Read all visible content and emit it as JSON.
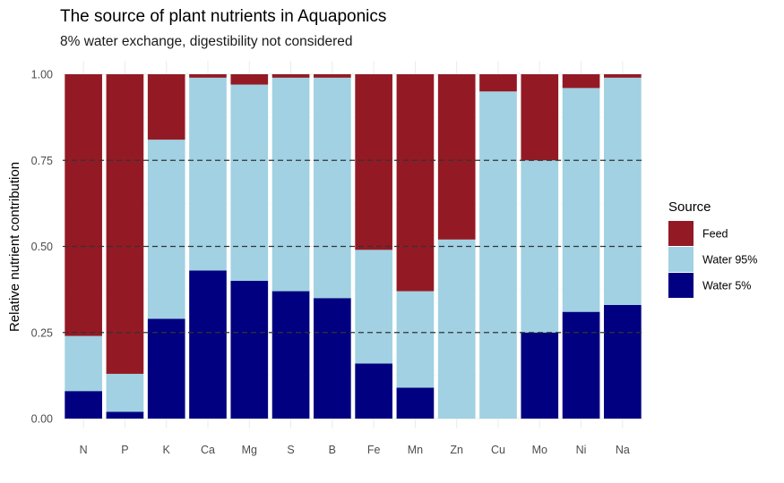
{
  "chart_data": {
    "type": "bar",
    "stacked": true,
    "title": "The source of plant nutrients in Aquaponics",
    "subtitle": "8% water exchange, digestibility not considered",
    "xlabel": "",
    "ylabel": "Relative nutrient contribution",
    "ylim": [
      0,
      1
    ],
    "yticks": [
      "0.00",
      "0.25",
      "0.50",
      "0.75",
      "1.00"
    ],
    "reference_lines": [
      0.25,
      0.5,
      0.75
    ],
    "grid": true,
    "legend": {
      "title": "Source",
      "placement": "right"
    },
    "categories": [
      "N",
      "P",
      "K",
      "Ca",
      "Mg",
      "S",
      "B",
      "Fe",
      "Mn",
      "Zn",
      "Cu",
      "Mo",
      "Ni",
      "Na"
    ],
    "series": [
      {
        "name": "Water 5%",
        "color": "#000080",
        "values": [
          0.08,
          0.02,
          0.29,
          0.43,
          0.4,
          0.37,
          0.35,
          0.16,
          0.09,
          0.0,
          0.0,
          0.25,
          0.31,
          0.33
        ]
      },
      {
        "name": "Water 95%",
        "color": "#a1d1e2",
        "values": [
          0.16,
          0.11,
          0.52,
          0.56,
          0.57,
          0.62,
          0.64,
          0.33,
          0.28,
          0.52,
          0.95,
          0.5,
          0.65,
          0.66
        ]
      },
      {
        "name": "Feed",
        "color": "#931a24",
        "values": [
          0.76,
          0.87,
          0.19,
          0.01,
          0.03,
          0.01,
          0.01,
          0.51,
          0.63,
          0.48,
          0.05,
          0.25,
          0.04,
          0.01
        ]
      }
    ],
    "legend_order": [
      "Feed",
      "Water 95%",
      "Water 5%"
    ]
  }
}
